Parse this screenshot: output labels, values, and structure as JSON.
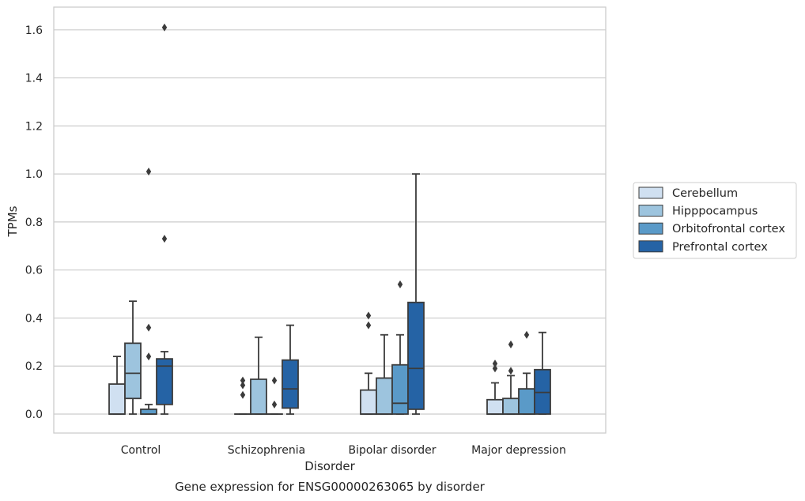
{
  "chart_data": {
    "type": "boxplot",
    "title": "Gene expression for ENSG00000263065 by disorder",
    "xlabel": "Disorder",
    "ylabel": "TPMs",
    "ylim": [
      -0.08,
      1.69
    ],
    "yticks": [
      0.0,
      0.2,
      0.4,
      0.6,
      0.8,
      1.0,
      1.2,
      1.4,
      1.6
    ],
    "ytick_labels": [
      "0.0",
      "0.2",
      "0.4",
      "0.6",
      "0.8",
      "1.0",
      "1.2",
      "1.4",
      "1.6"
    ],
    "grid": "horizontal",
    "legend_position": "right",
    "categories": [
      "Control",
      "Schizophrenia",
      "Bipolar disorder",
      "Major depression"
    ],
    "series": [
      {
        "name": "Cerebellum",
        "color": "#d0e0f1",
        "boxes": [
          {
            "whislo": 0.0,
            "q1": 0.0,
            "med": 0.0,
            "q3": 0.125,
            "whishi": 0.24,
            "fliers": []
          },
          {
            "whislo": 0.0,
            "q1": 0.0,
            "med": 0.0,
            "q3": 0.0,
            "whishi": 0.0,
            "fliers": [
              0.08,
              0.12,
              0.14
            ]
          },
          {
            "whislo": 0.0,
            "q1": 0.0,
            "med": 0.0,
            "q3": 0.1,
            "whishi": 0.17,
            "fliers": [
              0.37,
              0.41
            ]
          },
          {
            "whislo": 0.0,
            "q1": 0.0,
            "med": 0.0,
            "q3": 0.06,
            "whishi": 0.13,
            "fliers": [
              0.19,
              0.21
            ]
          }
        ]
      },
      {
        "name": "Hipppocampus",
        "color": "#9dc4de",
        "boxes": [
          {
            "whislo": 0.0,
            "q1": 0.065,
            "med": 0.17,
            "q3": 0.295,
            "whishi": 0.47,
            "fliers": []
          },
          {
            "whislo": 0.0,
            "q1": 0.0,
            "med": 0.0,
            "q3": 0.145,
            "whishi": 0.32,
            "fliers": []
          },
          {
            "whislo": 0.0,
            "q1": 0.0,
            "med": 0.0,
            "q3": 0.15,
            "whishi": 0.33,
            "fliers": []
          },
          {
            "whislo": 0.0,
            "q1": 0.0,
            "med": 0.0,
            "q3": 0.065,
            "whishi": 0.16,
            "fliers": [
              0.18,
              0.29
            ]
          }
        ]
      },
      {
        "name": "Orbitofrontal cortex",
        "color": "#5a9ac8",
        "boxes": [
          {
            "whislo": 0.0,
            "q1": 0.0,
            "med": 0.0,
            "q3": 0.02,
            "whishi": 0.04,
            "fliers": [
              0.24,
              0.36,
              1.01
            ]
          },
          {
            "whislo": 0.0,
            "q1": 0.0,
            "med": 0.0,
            "q3": 0.0,
            "whishi": 0.0,
            "fliers": [
              0.04,
              0.14
            ]
          },
          {
            "whislo": 0.0,
            "q1": 0.0,
            "med": 0.045,
            "q3": 0.205,
            "whishi": 0.33,
            "fliers": [
              0.54
            ]
          },
          {
            "whislo": 0.0,
            "q1": 0.0,
            "med": 0.0,
            "q3": 0.105,
            "whishi": 0.17,
            "fliers": [
              0.33
            ]
          }
        ]
      },
      {
        "name": "Prefrontal cortex",
        "color": "#2563a5",
        "boxes": [
          {
            "whislo": 0.0,
            "q1": 0.04,
            "med": 0.2,
            "q3": 0.23,
            "whishi": 0.26,
            "fliers": [
              0.73,
              1.61
            ]
          },
          {
            "whislo": 0.0,
            "q1": 0.025,
            "med": 0.105,
            "q3": 0.225,
            "whishi": 0.37,
            "fliers": []
          },
          {
            "whislo": 0.0,
            "q1": 0.02,
            "med": 0.19,
            "q3": 0.465,
            "whishi": 1.0,
            "fliers": []
          },
          {
            "whislo": 0.0,
            "q1": 0.0,
            "med": 0.09,
            "q3": 0.185,
            "whishi": 0.34,
            "fliers": []
          }
        ]
      }
    ]
  },
  "style": {
    "grid_color": "#cccccc",
    "spine_color": "#cccccc",
    "line_color": "#3b3b3b",
    "background": "#ffffff"
  }
}
